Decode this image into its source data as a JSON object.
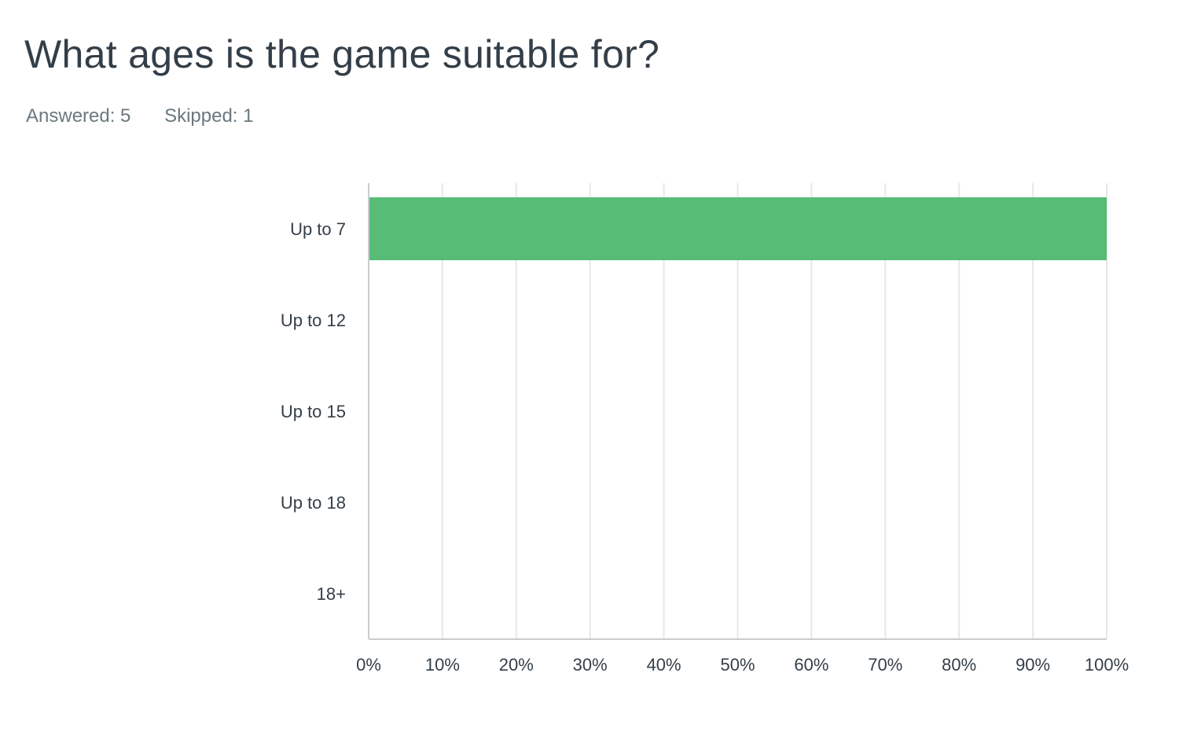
{
  "survey": {
    "question": "What ages is the game suitable for?",
    "answered_label": "Answered: 5",
    "skipped_label": "Skipped: 1"
  },
  "colors": {
    "bar": "#57bc76",
    "grid": "#e6e8e9",
    "axis": "#c9cdd0",
    "text": "#333e48",
    "muted": "#6b787f"
  },
  "chart_data": {
    "type": "bar",
    "orientation": "horizontal",
    "categories": [
      "Up to 7",
      "Up to 12",
      "Up to 15",
      "Up to 18",
      "18+"
    ],
    "values": [
      100,
      0,
      0,
      0,
      0
    ],
    "x_ticks": [
      0,
      10,
      20,
      30,
      40,
      50,
      60,
      70,
      80,
      90,
      100
    ],
    "x_tick_labels": [
      "0%",
      "10%",
      "20%",
      "30%",
      "40%",
      "50%",
      "60%",
      "70%",
      "80%",
      "90%",
      "100%"
    ],
    "xlim": [
      0,
      100
    ],
    "xlabel": "",
    "ylabel": "",
    "grid": true,
    "legend": "none"
  }
}
